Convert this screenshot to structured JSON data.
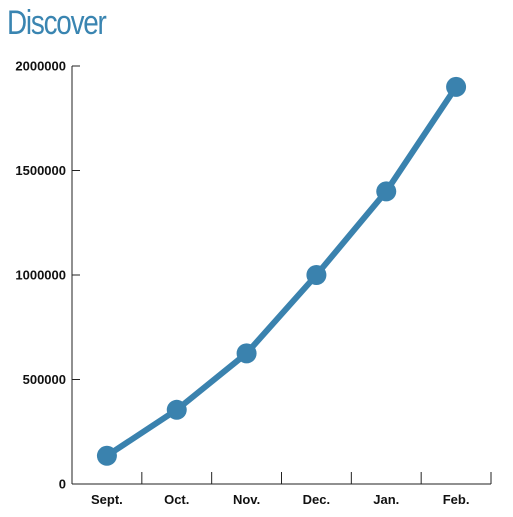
{
  "chart_data": {
    "type": "line",
    "title": "Discover",
    "xlabel": "",
    "ylabel": "",
    "categories": [
      "Sept.",
      "Oct.",
      "Nov.",
      "Dec.",
      "Jan.",
      "Feb."
    ],
    "series": [
      {
        "values": [
          135000,
          355000,
          625000,
          1000000,
          1400000,
          1900000
        ]
      }
    ],
    "ylim": [
      0,
      2000000
    ],
    "yticks": [
      "0",
      "500000",
      "1000000",
      "1500000",
      "2000000"
    ],
    "grid": false,
    "legend": "none",
    "colors": {
      "line": "#3a82ae",
      "title": "#3a85b1",
      "axis": "#222222"
    }
  }
}
